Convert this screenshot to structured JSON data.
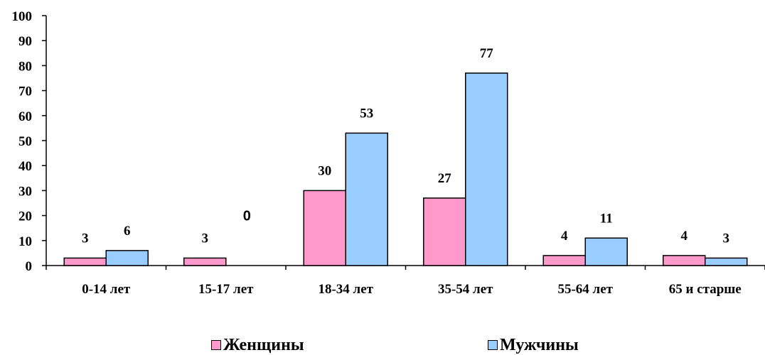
{
  "chart_data": {
    "type": "bar",
    "categories": [
      "0-14 лет",
      "15-17 лет",
      "18-34 лет",
      "35-54 лет",
      "55-64 лет",
      "65 и старше"
    ],
    "series": [
      {
        "name": "Женщины",
        "values": [
          3,
          3,
          30,
          27,
          4,
          4
        ],
        "color": "#ff99cc",
        "labels": [
          "3",
          "3",
          "30",
          "27",
          "4",
          "4"
        ]
      },
      {
        "name": "Мужчины",
        "values": [
          6,
          0,
          53,
          77,
          11,
          3
        ],
        "color": "#99ccff",
        "labels": [
          "6",
          "0",
          "53",
          "77",
          "11",
          "3"
        ]
      }
    ],
    "title": "",
    "xlabel": "",
    "ylabel": "",
    "ylim": [
      0,
      100
    ],
    "yticks": [
      "0",
      "10",
      "20",
      "30",
      "40",
      "50",
      "60",
      "70",
      "80",
      "90",
      "100"
    ],
    "grid": false,
    "legend_position": "bottom"
  }
}
